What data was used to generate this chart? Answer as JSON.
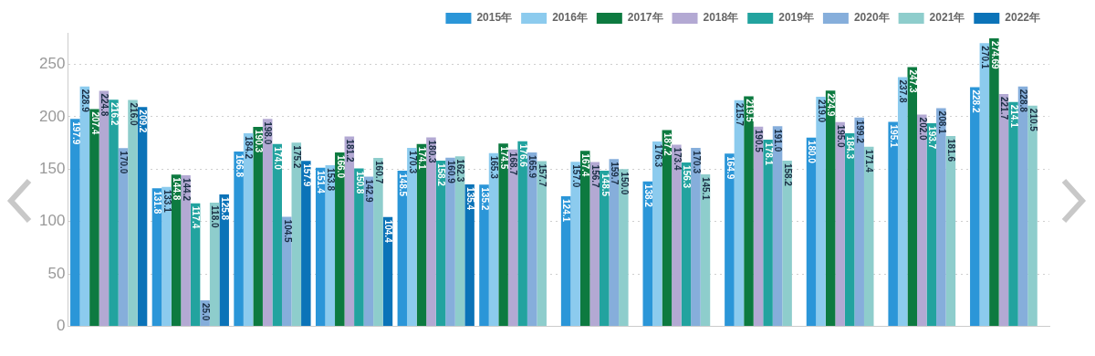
{
  "chart_data": {
    "type": "bar",
    "categories": [
      null,
      null,
      null,
      null,
      null,
      null,
      null,
      null,
      null,
      null,
      null,
      null
    ],
    "ylim": [
      0,
      280
    ],
    "yticks": [
      0,
      50,
      100,
      150,
      200,
      250
    ],
    "grid": "y",
    "legend": "top right",
    "series": [
      {
        "name": "2015年",
        "color": "#2b96d8",
        "values": [
          197.9,
          131.8,
          166.8,
          151.4,
          148.5,
          135.2,
          124.1,
          138.2,
          164.9,
          180.0,
          195.1,
          228.2
        ],
        "value_labels": [
          "197.9",
          "131.8",
          "166.8",
          "151.4",
          "148.5",
          "135.2",
          "124.1",
          "138.2",
          "164.9",
          "180.0",
          "195.1",
          "228.2"
        ]
      },
      {
        "name": "2016年",
        "color": "#8ccbee",
        "values": [
          228.9,
          133.1,
          184.2,
          153.8,
          170.3,
          165.3,
          157.0,
          176.3,
          215.7,
          219.0,
          237.8,
          270.1
        ],
        "value_labels": [
          "228.9",
          "133.1",
          "184.2",
          "153.8",
          "170.3",
          "165.3",
          "157.0",
          "176.3",
          "215.7",
          "219.0",
          "237.8",
          "270.1"
        ]
      },
      {
        "name": "2017年",
        "color": "#0d7a40",
        "values": [
          207.4,
          144.8,
          190.3,
          166.0,
          174.1,
          174.5,
          167.4,
          187.2,
          219.5,
          224.9,
          247.3,
          274.69
        ],
        "value_labels": [
          "207.4",
          "144.8",
          "190.3",
          "166.0",
          "174.1",
          "174.5",
          "167.4",
          "187.2",
          "219.5",
          "224.9",
          "247.3",
          "274.69"
        ]
      },
      {
        "name": "2018年",
        "color": "#b3a9d3",
        "values": [
          224.8,
          144.2,
          198.0,
          181.2,
          180.3,
          168.7,
          156.7,
          173.4,
          190.5,
          195.0,
          202.0,
          221.7
        ],
        "value_labels": [
          "224.8",
          "144.2",
          "198.0",
          "181.2",
          "180.3",
          "168.7",
          "156.7",
          "173.4",
          "190.5",
          "195.0",
          "202.0",
          "221.7"
        ]
      },
      {
        "name": "2019年",
        "color": "#22a39f",
        "values": [
          216.2,
          117.4,
          174.0,
          150.8,
          158.2,
          176.6,
          148.5,
          156.3,
          178.1,
          184.3,
          193.7,
          214.1
        ],
        "value_labels": [
          "216.2",
          "117.4",
          "174.0",
          "150.8",
          "158.2",
          "176.6",
          "148.5",
          "156.3",
          "178.1",
          "184.3",
          "193.7",
          "214.1"
        ]
      },
      {
        "name": "2020年",
        "color": "#86aedb",
        "values": [
          170.0,
          25.0,
          104.5,
          142.9,
          160.9,
          165.9,
          159.7,
          170.3,
          191.0,
          199.2,
          208.1,
          228.8
        ],
        "value_labels": [
          "170.0",
          "25.0",
          "104.5",
          "142.9",
          "160.9",
          "165.9",
          "159.7",
          "170.3",
          "191.0",
          "199.2",
          "208.1",
          "228.8"
        ]
      },
      {
        "name": "2021年",
        "color": "#8ecdcc",
        "values": [
          216.0,
          118.0,
          175.2,
          160.7,
          162.3,
          157.7,
          150.0,
          145.1,
          158.2,
          171.4,
          181.6,
          210.5
        ],
        "value_labels": [
          "216.0",
          "118.0",
          "175.2",
          "160.7",
          "162.3",
          "157.7",
          "150.0",
          "145.1",
          "158.2",
          "171.4",
          "181.6",
          "210.5"
        ]
      },
      {
        "name": "2022年",
        "color": "#0b73b8",
        "values": [
          209.2,
          125.8,
          157.9,
          104.4,
          135.4,
          null,
          null,
          null,
          null,
          null,
          null,
          null
        ],
        "value_labels": [
          "209.2",
          "125.8",
          "157.9",
          "104.4",
          "135.4",
          null,
          null,
          null,
          null,
          null,
          null,
          null
        ]
      }
    ]
  }
}
